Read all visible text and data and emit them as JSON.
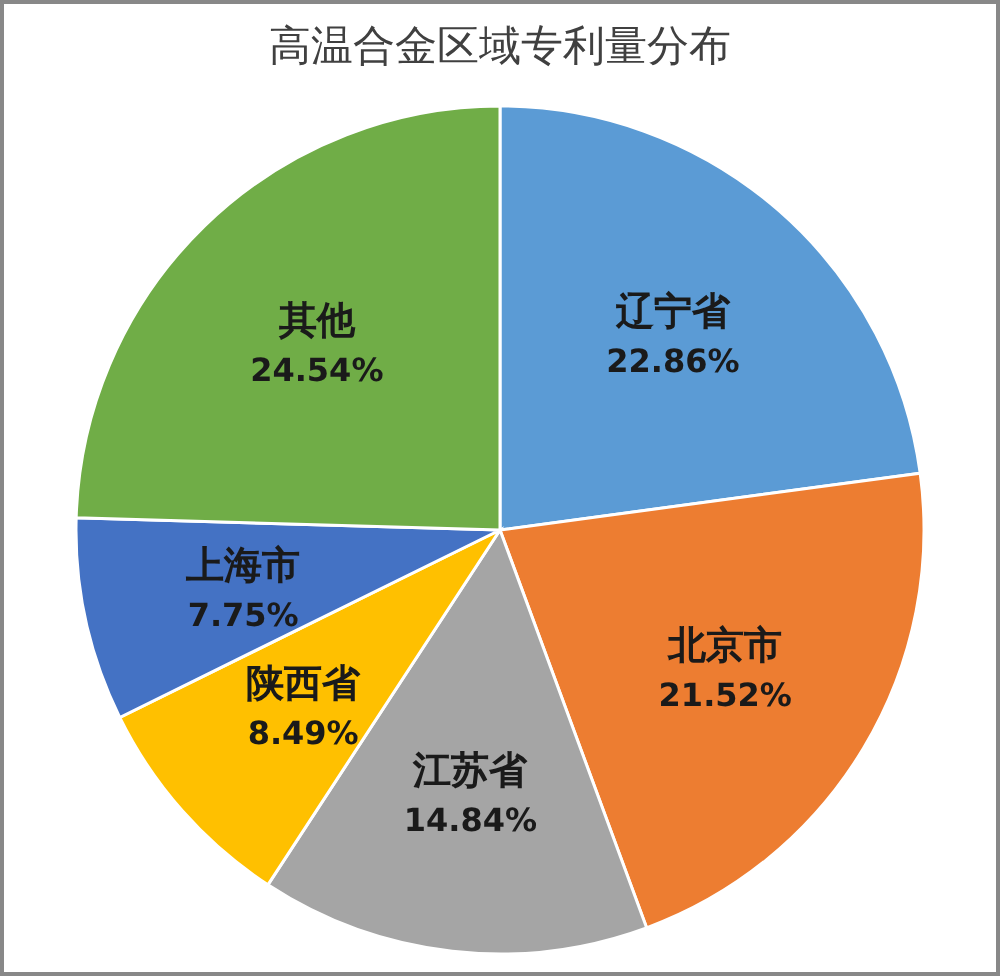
{
  "chart_data": {
    "type": "pie",
    "title": "高温合金区域专利量分布",
    "categories": [
      "辽宁省",
      "北京市",
      "江苏省",
      "陕西省",
      "上海市",
      "其他"
    ],
    "values": [
      22.86,
      21.52,
      14.84,
      8.49,
      7.75,
      24.54
    ],
    "value_labels": [
      "22.86%",
      "21.52%",
      "14.84%",
      "8.49%",
      "7.75%",
      "24.54%"
    ],
    "colors": [
      "#5b9bd5",
      "#ed7d31",
      "#a5a5a5",
      "#ffc000",
      "#4472c4",
      "#70ad47"
    ]
  }
}
